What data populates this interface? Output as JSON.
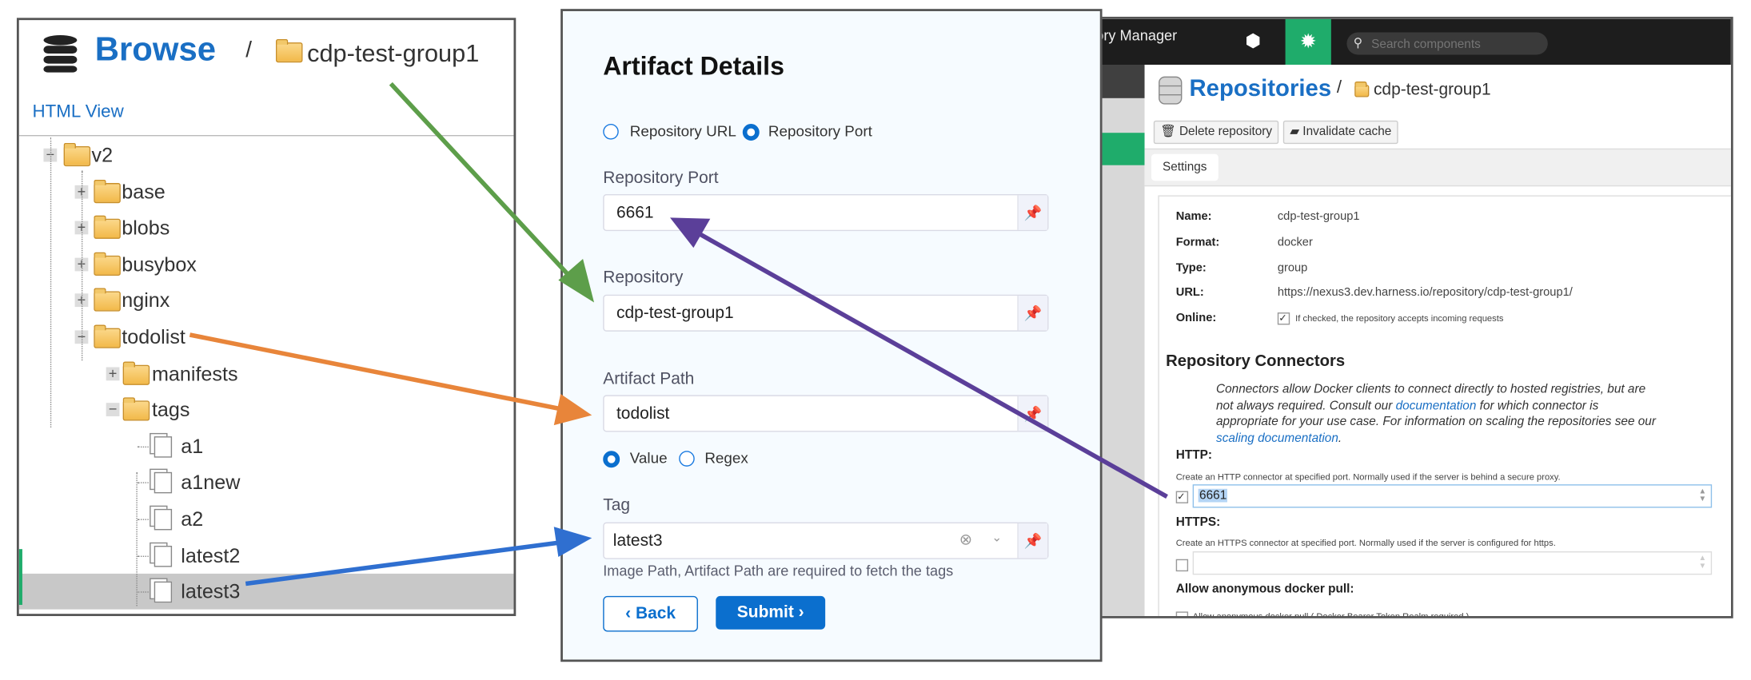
{
  "browse": {
    "title": "Browse",
    "separator": "/",
    "repo": "cdp-test-group1",
    "html_view": "HTML View",
    "tree": [
      {
        "label": "v2",
        "level": 0,
        "type": "folder",
        "toggle": "−"
      },
      {
        "label": "base",
        "level": 1,
        "type": "folder",
        "toggle": "+"
      },
      {
        "label": "blobs",
        "level": 1,
        "type": "folder",
        "toggle": "+"
      },
      {
        "label": "busybox",
        "level": 1,
        "type": "folder",
        "toggle": "+"
      },
      {
        "label": "nginx",
        "level": 1,
        "type": "folder",
        "toggle": "+"
      },
      {
        "label": "todolist",
        "level": 1,
        "type": "folder",
        "toggle": "−"
      },
      {
        "label": "manifests",
        "level": 2,
        "type": "folder",
        "toggle": "+"
      },
      {
        "label": "tags",
        "level": 2,
        "type": "folder",
        "toggle": "−"
      },
      {
        "label": "a1",
        "level": 3,
        "type": "leaf"
      },
      {
        "label": "a1new",
        "level": 3,
        "type": "leaf"
      },
      {
        "label": "a2",
        "level": 3,
        "type": "leaf"
      },
      {
        "label": "latest2",
        "level": 3,
        "type": "leaf"
      },
      {
        "label": "latest3",
        "level": 3,
        "type": "leaf",
        "selected": true
      }
    ]
  },
  "artifact": {
    "title": "Artifact Details",
    "source_options": [
      {
        "label": "Repository URL",
        "selected": false
      },
      {
        "label": "Repository Port",
        "selected": true
      }
    ],
    "repository_port": {
      "label": "Repository Port",
      "value": "6661"
    },
    "repository": {
      "label": "Repository",
      "value": "cdp-test-group1"
    },
    "artifact_path": {
      "label": "Artifact Path",
      "value": "todolist"
    },
    "path_type_options": [
      {
        "label": "Value",
        "selected": true
      },
      {
        "label": "Regex",
        "selected": false
      }
    ],
    "tag": {
      "label": "Tag",
      "value": "latest3"
    },
    "help_text": "Image Path, Artifact Path are required to fetch the tags",
    "back_label": "Back",
    "submit_label": "Submit"
  },
  "nexus": {
    "app_title": "Repository Manager",
    "search_placeholder": "Search components",
    "page_title": "Repositories",
    "separator": "/",
    "repo": "cdp-test-group1",
    "delete_label": "Delete repository",
    "invalidate_label": "Invalidate cache",
    "tab": "Settings",
    "details": [
      {
        "key": "Name:",
        "value": "cdp-test-group1"
      },
      {
        "key": "Format:",
        "value": "docker"
      },
      {
        "key": "Type:",
        "value": "group"
      },
      {
        "key": "URL:",
        "value": "https://nexus3.dev.harness.io/repository/cdp-test-group1/"
      },
      {
        "key": "Online:",
        "value": "If checked, the repository accepts incoming requests",
        "checked": true
      }
    ],
    "connectors_title": "Repository Connectors",
    "connectors_text_1": "Connectors allow Docker clients to connect directly to hosted registries, but are not always required. Consult our ",
    "connectors_link_1": "documentation",
    "connectors_text_2": " for which connector is appropriate for your use case. For information on scaling the repositories see our ",
    "connectors_link_2": "scaling documentation",
    "connectors_text_3": ".",
    "http_label": "HTTP:",
    "http_desc": "Create an HTTP connector at specified port. Normally used if the server is behind a secure proxy.",
    "http_checked": true,
    "http_port": "6661",
    "https_label": "HTTPS:",
    "https_desc": "Create an HTTPS connector at specified port. Normally used if the server is configured for https.",
    "https_checked": false,
    "https_port": "",
    "anon_label": "Allow anonymous docker pull:",
    "anon_desc": "Allow anonymous docker pull ( Docker Bearer Token Realm required )",
    "anon_checked": false
  },
  "colors": {
    "accent_blue": "#0b6fce",
    "nexus_green": "#1fac6b",
    "arrow_green": "#5d9e4a",
    "arrow_orange": "#e8853a",
    "arrow_blue": "#2f6fd0",
    "arrow_purple": "#5b3f99"
  }
}
